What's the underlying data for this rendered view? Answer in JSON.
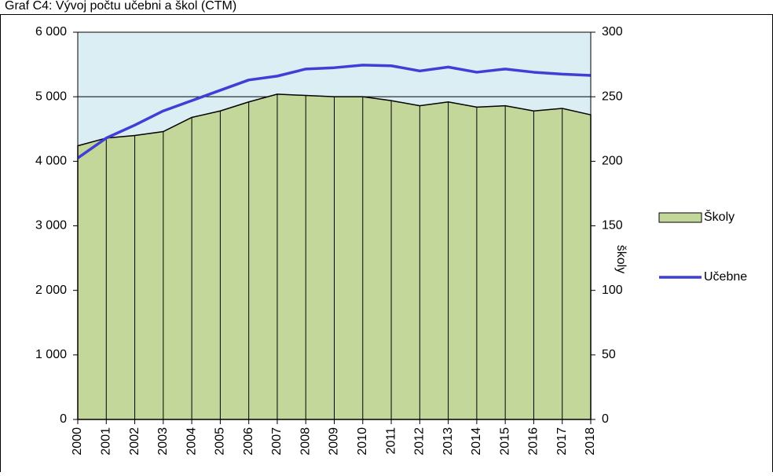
{
  "chart_data": {
    "type": "area-line",
    "title": "Graf C4: Vývoj počtu učebni a škol (ČTM)",
    "y2label": "školy",
    "categories": [
      "2000",
      "2001",
      "2002",
      "2003",
      "2004",
      "2005",
      "2006",
      "2007",
      "2008",
      "2009",
      "2010",
      "2011",
      "2012",
      "2013",
      "2014",
      "2015",
      "2016",
      "2017",
      "2018"
    ],
    "series": [
      {
        "name": "Školy",
        "type": "area",
        "axis": "y2",
        "color": "#c4d79b",
        "values": [
          212,
          218,
          220,
          223,
          234,
          239,
          246,
          252,
          251,
          250,
          250,
          247,
          243,
          246,
          242,
          243,
          239,
          241,
          236
        ]
      },
      {
        "name": "Učebne",
        "type": "line",
        "axis": "y",
        "color": "#3f3fd8",
        "values": [
          4050,
          4360,
          4560,
          4780,
          4940,
          5100,
          5260,
          5320,
          5430,
          5450,
          5490,
          5480,
          5400,
          5460,
          5380,
          5430,
          5380,
          5350,
          5330
        ]
      }
    ],
    "ylim": [
      0,
      6000
    ],
    "yticks": [
      {
        "value": 0,
        "label": "0"
      },
      {
        "value": 1000,
        "label": "1 000"
      },
      {
        "value": 2000,
        "label": "2 000"
      },
      {
        "value": 3000,
        "label": "3 000"
      },
      {
        "value": 4000,
        "label": "4 000"
      },
      {
        "value": 5000,
        "label": "5 000"
      },
      {
        "value": 6000,
        "label": "6 000"
      }
    ],
    "y2lim": [
      0,
      300
    ],
    "y2ticks": [
      0,
      50,
      100,
      150,
      200,
      250,
      300
    ],
    "grid": true,
    "plot_background": "#dbeef4",
    "legend": "right"
  }
}
